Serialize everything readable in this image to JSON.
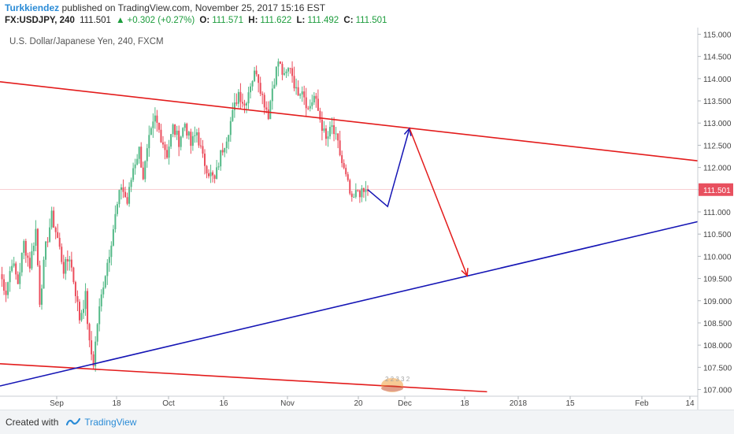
{
  "header": {
    "author": "Turkkiendez",
    "published": "published on TradingView.com, November 25, 2017 15:16 EST",
    "symbol": "FX:USDJPY, 240",
    "last": "111.501",
    "change": "+0.302 (+0.27%)",
    "open_label": "O:",
    "open": "111.571",
    "high_label": "H:",
    "high": "111.622",
    "low_label": "L:",
    "low": "111.492",
    "close_label": "C:",
    "close": "111.501"
  },
  "chart_data": {
    "type": "candlestick",
    "title": "U.S. Dollar/Japanese Yen, 240, FXCM",
    "ylim": [
      106.85,
      115.15
    ],
    "y_ticks": [
      "115.000",
      "114.500",
      "114.000",
      "113.500",
      "113.000",
      "112.500",
      "112.000",
      "111.500",
      "111.000",
      "110.500",
      "110.000",
      "109.500",
      "109.000",
      "108.500",
      "108.000",
      "107.500",
      "107.000"
    ],
    "x_ticks": [
      "Sep",
      "18",
      "Oct",
      "16",
      "Nov",
      "20",
      "Dec",
      "18",
      "2018",
      "15",
      "Feb",
      "14"
    ],
    "last_price_label": "111.501",
    "accent_colors": {
      "up": "#53b987",
      "down": "#eb4d5c",
      "resistance": "#e31c1c",
      "support": "#1515b5",
      "last_price": "#e8505f"
    },
    "price_series": [
      [
        0,
        109.6
      ],
      [
        3,
        109.2
      ],
      [
        6,
        109.9
      ],
      [
        9,
        109.4
      ],
      [
        12,
        110.3
      ],
      [
        15,
        109.8
      ],
      [
        18,
        110.6
      ],
      [
        20,
        109.0
      ],
      [
        23,
        110.2
      ],
      [
        26,
        110.9
      ],
      [
        29,
        110.4
      ],
      [
        32,
        109.7
      ],
      [
        35,
        110.0
      ],
      [
        38,
        109.2
      ],
      [
        40,
        108.6
      ],
      [
        43,
        109.1
      ],
      [
        45,
        108.0
      ],
      [
        47,
        107.6
      ],
      [
        49,
        108.5
      ],
      [
        52,
        109.4
      ],
      [
        55,
        110.1
      ],
      [
        58,
        110.9
      ],
      [
        61,
        111.6
      ],
      [
        64,
        111.2
      ],
      [
        67,
        112.0
      ],
      [
        70,
        112.4
      ],
      [
        72,
        111.8
      ],
      [
        75,
        112.6
      ],
      [
        78,
        113.1
      ],
      [
        81,
        112.7
      ],
      [
        84,
        112.3
      ],
      [
        87,
        112.9
      ],
      [
        90,
        112.6
      ],
      [
        93,
        113.0
      ],
      [
        96,
        112.5
      ],
      [
        99,
        112.8
      ],
      [
        102,
        112.2
      ],
      [
        105,
        111.9
      ],
      [
        108,
        111.7
      ],
      [
        111,
        112.3
      ],
      [
        114,
        112.7
      ],
      [
        117,
        113.2
      ],
      [
        120,
        113.7
      ],
      [
        123,
        113.4
      ],
      [
        126,
        113.9
      ],
      [
        129,
        114.2
      ],
      [
        132,
        113.6
      ],
      [
        135,
        113.2
      ],
      [
        137,
        113.8
      ],
      [
        140,
        114.4
      ],
      [
        143,
        114.0
      ],
      [
        146,
        114.3
      ],
      [
        149,
        113.7
      ],
      [
        152,
        113.8
      ],
      [
        155,
        113.3
      ],
      [
        158,
        113.6
      ],
      [
        161,
        113.1
      ],
      [
        164,
        112.6
      ],
      [
        167,
        112.9
      ],
      [
        170,
        112.5
      ],
      [
        172,
        112.1
      ],
      [
        175,
        111.6
      ],
      [
        177,
        111.2
      ],
      [
        180,
        111.5
      ],
      [
        182,
        111.4
      ],
      [
        185,
        111.5
      ]
    ],
    "drawn_lines": [
      {
        "name": "upper-resistance",
        "color": "#e31c1c",
        "points": [
          [
            0,
            113.93
          ],
          [
            351,
            112.15
          ]
        ]
      },
      {
        "name": "lower-resistance",
        "color": "#e31c1c",
        "points": [
          [
            0,
            107.58
          ],
          [
            245,
            106.95
          ]
        ]
      },
      {
        "name": "support",
        "color": "#1515b5",
        "points": [
          [
            0,
            107.08
          ],
          [
            351,
            110.78
          ]
        ]
      }
    ],
    "projection_path": [
      {
        "color": "#1515b5",
        "points": [
          [
            185,
            111.5
          ],
          [
            195,
            111.12
          ],
          [
            206,
            112.88
          ]
        ]
      },
      {
        "color": "#e31c1c",
        "points": [
          [
            206,
            112.88
          ],
          [
            235,
            109.56
          ]
        ]
      }
    ]
  },
  "footer": {
    "created_with": "Created with",
    "brand": "TradingView"
  }
}
